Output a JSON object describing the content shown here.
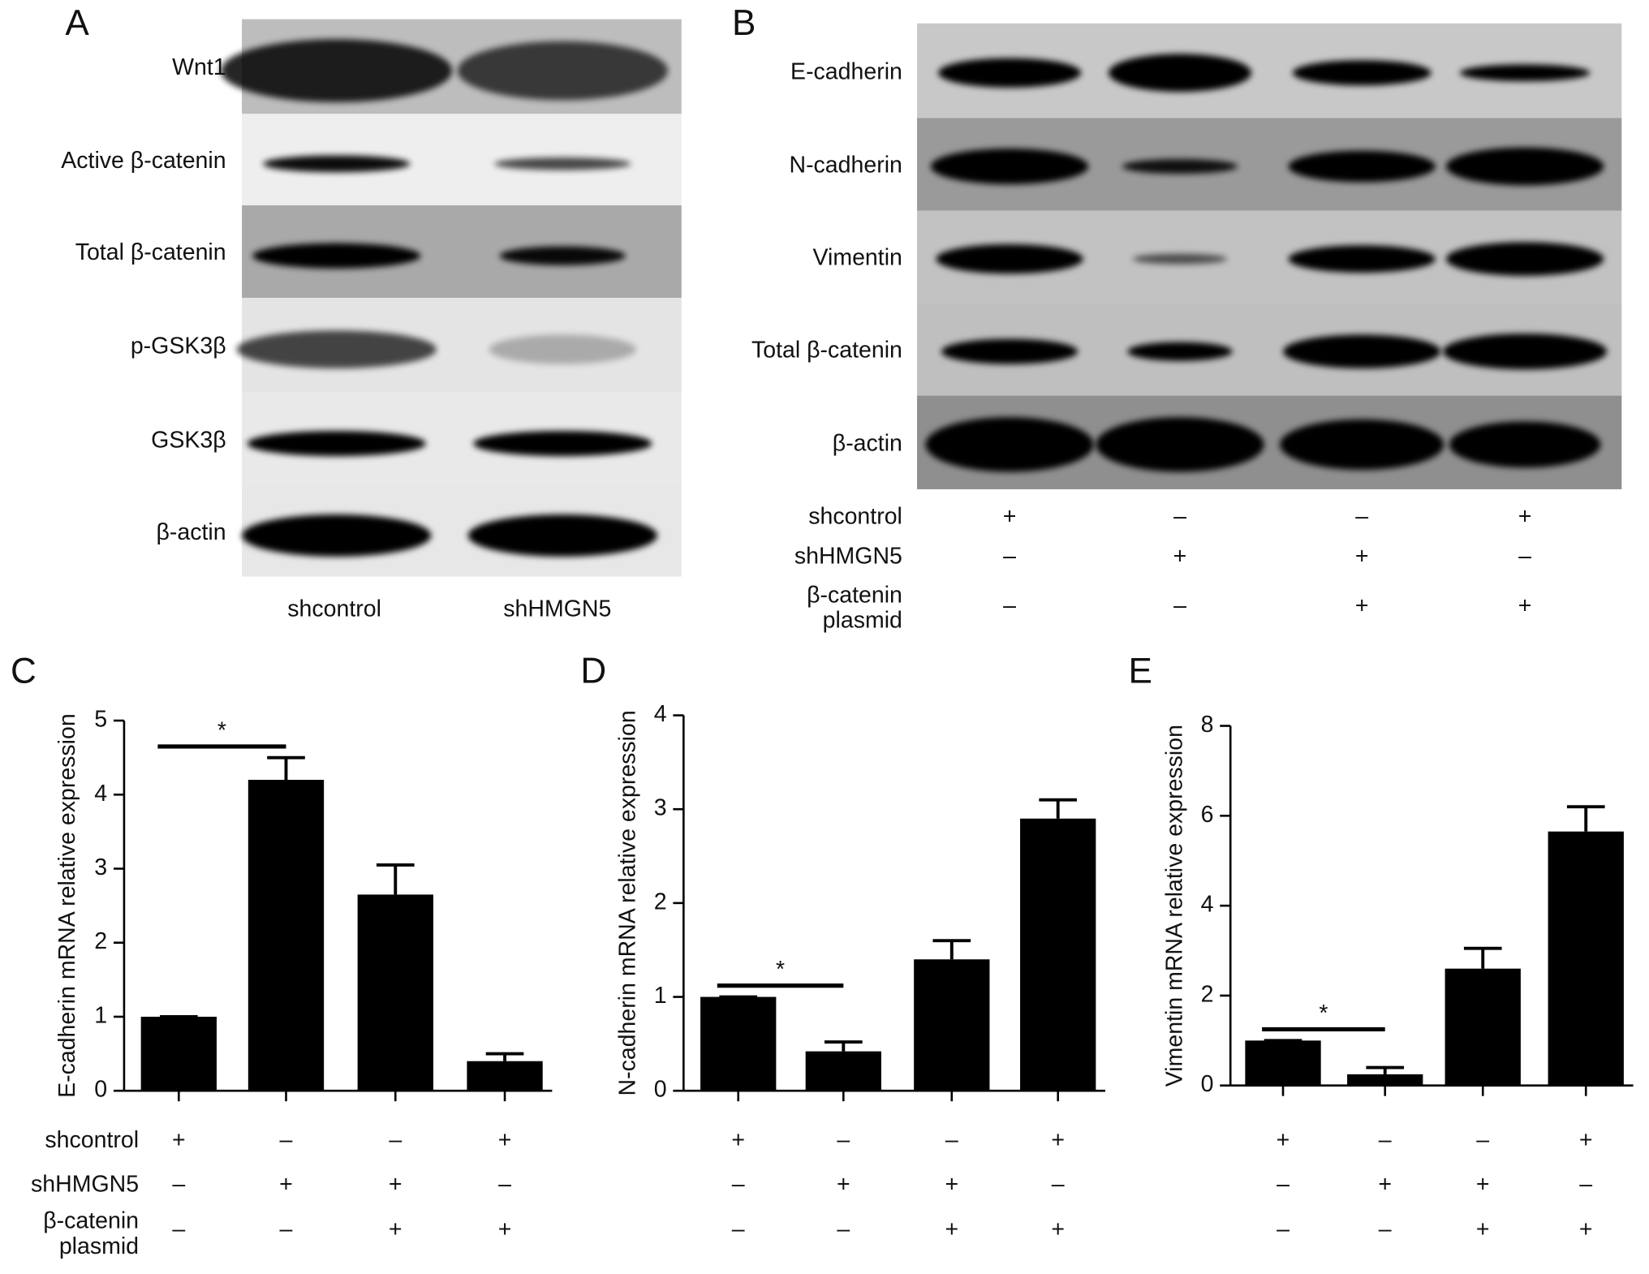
{
  "blot_a": {
    "label": "A",
    "rows": [
      "Wnt1",
      "Active β-catenin",
      "Total β-catenin",
      "p-GSK3β",
      "GSK3β",
      "β-actin"
    ],
    "lanes": [
      "shcontrol",
      "shHMGN5"
    ]
  },
  "blot_b": {
    "label": "B",
    "rows": [
      "E-cadherin",
      "N-cadherin",
      "Vimentin",
      "Total β-catenin",
      "β-actin"
    ],
    "conditions": [
      {
        "label": [
          "shcontrol"
        ],
        "signs": [
          "+",
          "–",
          "–",
          "+"
        ]
      },
      {
        "label": [
          "shHMGN5"
        ],
        "signs": [
          "–",
          "+",
          "+",
          "–"
        ]
      },
      {
        "label": [
          "β-catenin",
          "plasmid"
        ],
        "signs": [
          "–",
          "–",
          "+",
          "+"
        ]
      }
    ]
  },
  "chart_data": [
    {
      "type": "bar",
      "panel": "C",
      "y_label": "E-cadherin mRNA relative expression",
      "values": [
        1,
        4.2,
        2.65,
        0.4
      ],
      "errors": [
        0,
        0.3,
        0.4,
        0.1
      ],
      "color": "#000000",
      "ylim": [
        0,
        5
      ],
      "yticks": [
        0,
        1,
        2,
        3,
        4,
        5
      ],
      "significance": {
        "label": "*",
        "y": 4.65,
        "bars": [
          0,
          1
        ]
      },
      "condition_labels": [
        [
          "shcontrol"
        ],
        [
          "shHMGN5"
        ],
        [
          "β-catenin",
          "plasmid"
        ]
      ],
      "signs": [
        [
          "+",
          "–",
          "–",
          "+"
        ],
        [
          "–",
          "+",
          "+",
          "–"
        ],
        [
          "–",
          "–",
          "+",
          "+"
        ]
      ]
    },
    {
      "type": "bar",
      "panel": "D",
      "y_label": "N-cadherin mRNA relative expression",
      "values": [
        1,
        0.42,
        1.4,
        2.9
      ],
      "errors": [
        0,
        0.1,
        0.2,
        0.2
      ],
      "color": "#000000",
      "ylim": [
        0,
        4
      ],
      "yticks": [
        0,
        1,
        2,
        3,
        4
      ],
      "significance": {
        "label": "*",
        "y": 1.12,
        "bars": [
          0,
          1
        ]
      },
      "signs": [
        [
          "+",
          "–",
          "–",
          "+"
        ],
        [
          "–",
          "+",
          "+",
          "–"
        ],
        [
          "–",
          "–",
          "+",
          "+"
        ]
      ]
    },
    {
      "type": "bar",
      "panel": "E",
      "y_label": "Vimentin mRNA relative expression",
      "values": [
        1,
        0.25,
        2.6,
        5.65
      ],
      "errors": [
        0,
        0.15,
        0.45,
        0.55
      ],
      "color": "#000000",
      "ylim": [
        0,
        8
      ],
      "yticks": [
        0,
        2,
        4,
        6,
        8
      ],
      "significance": {
        "label": "*",
        "y": 1.25,
        "bars": [
          0,
          1
        ]
      },
      "signs": [
        [
          "+",
          "–",
          "–",
          "+"
        ],
        [
          "–",
          "+",
          "+",
          "–"
        ],
        [
          "–",
          "–",
          "+",
          "+"
        ]
      ]
    }
  ]
}
